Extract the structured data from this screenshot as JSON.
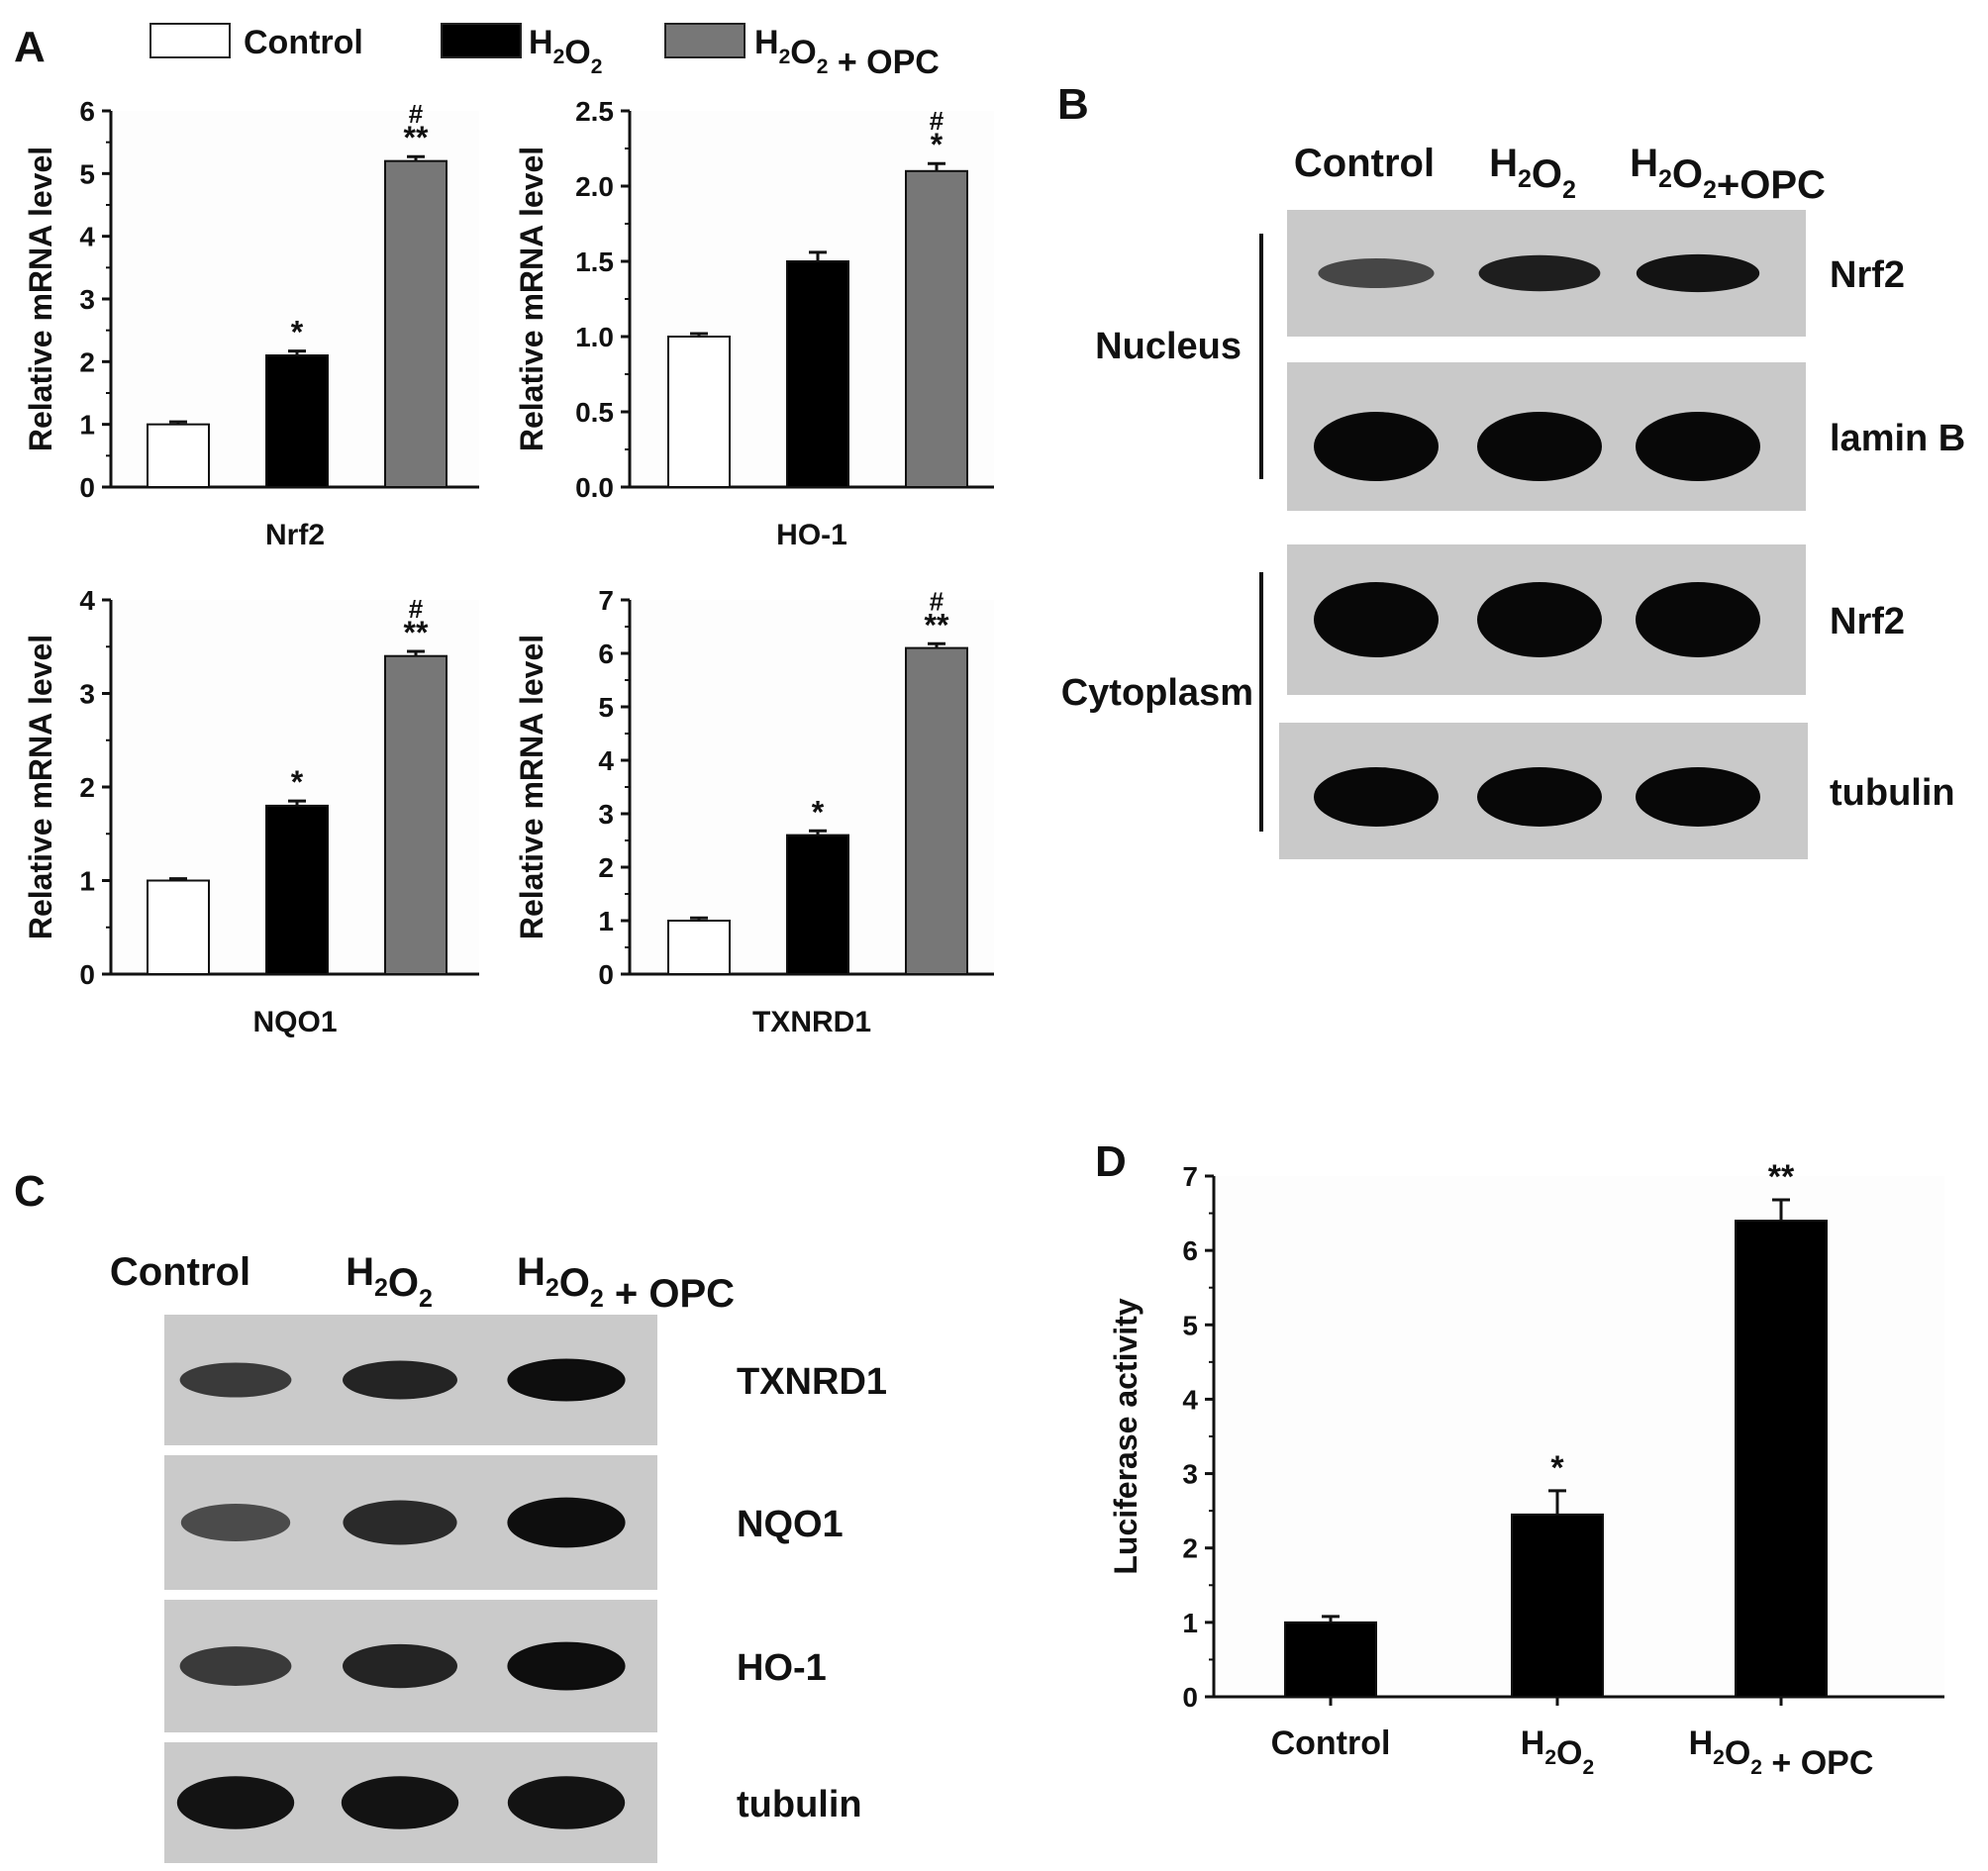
{
  "panel_labels": {
    "a": "A",
    "b": "B",
    "c": "C",
    "d": "D"
  },
  "legend": {
    "items": [
      {
        "label": "Control",
        "color": "#ffffff"
      },
      {
        "label": "H",
        "sub": "2",
        "label2": "O",
        "sub2": "2",
        "color": "#000000"
      },
      {
        "label": "H",
        "sub": "2",
        "label2": "O",
        "sub2": "2",
        "tail": " + OPC",
        "color": "#777777"
      }
    ]
  },
  "chart_data": [
    {
      "type": "bar",
      "panel": "A",
      "xlabel": "Nrf2",
      "ylabel": "Relative mRNA level",
      "ylim": [
        0,
        6
      ],
      "ticks": [
        "0",
        "1",
        "2",
        "3",
        "4",
        "5",
        "6"
      ],
      "values": [
        1.0,
        2.1,
        5.2
      ],
      "errors": [
        0.04,
        0.07,
        0.07
      ],
      "annotations": [
        [
          "",
          ""
        ],
        [
          "",
          "*"
        ],
        [
          "#",
          "**"
        ]
      ]
    },
    {
      "type": "bar",
      "panel": "A",
      "xlabel": "HO-1",
      "ylabel": "Relative mRNA level",
      "ylim": [
        0,
        2.5
      ],
      "ticks": [
        "0.0",
        "0.5",
        "1.0",
        "1.5",
        "2.0",
        "2.5"
      ],
      "values": [
        1.0,
        1.5,
        2.1
      ],
      "errors": [
        0.02,
        0.06,
        0.05
      ],
      "annotations": [
        [
          "",
          ""
        ],
        [
          "",
          ""
        ],
        [
          "#",
          "*"
        ]
      ]
    },
    {
      "type": "bar",
      "panel": "A",
      "xlabel": "NQO1",
      "ylabel": "Relative mRNA level",
      "ylim": [
        0,
        4
      ],
      "ticks": [
        "0",
        "1",
        "2",
        "3",
        "4"
      ],
      "values": [
        1.0,
        1.8,
        3.4
      ],
      "errors": [
        0.02,
        0.05,
        0.05
      ],
      "annotations": [
        [
          "",
          ""
        ],
        [
          "",
          "*"
        ],
        [
          "#",
          "**"
        ]
      ]
    },
    {
      "type": "bar",
      "panel": "A",
      "xlabel": "TXNRD1",
      "ylabel": "Relative mRNA level",
      "ylim": [
        0,
        7
      ],
      "ticks": [
        "0",
        "1",
        "2",
        "3",
        "4",
        "5",
        "6",
        "7"
      ],
      "values": [
        1.0,
        2.6,
        6.1
      ],
      "errors": [
        0.05,
        0.08,
        0.08
      ],
      "annotations": [
        [
          "",
          ""
        ],
        [
          "",
          "*"
        ],
        [
          "#",
          "**"
        ]
      ]
    },
    {
      "type": "bar",
      "panel": "D",
      "xlabel": "",
      "ylabel": "Luciferase activity",
      "ylim": [
        0,
        7
      ],
      "ticks": [
        "0",
        "1",
        "2",
        "3",
        "4",
        "5",
        "6",
        "7"
      ],
      "categories": [
        {
          "label": "Control"
        },
        {
          "label": "H",
          "sub": "2",
          "label2": "O",
          "sub2": "2"
        },
        {
          "label": "H",
          "sub": "2",
          "label2": "O",
          "sub2": "2",
          "tail": " + OPC"
        }
      ],
      "values": [
        1.0,
        2.45,
        6.4
      ],
      "errors": [
        0.08,
        0.32,
        0.28
      ],
      "annotations": [
        "",
        "*",
        "**"
      ]
    }
  ],
  "blot_b": {
    "lanes": [
      {
        "label": "Control"
      },
      {
        "label": "H",
        "sub": "2",
        "label2": "O",
        "sub2": "2"
      },
      {
        "label": "H",
        "sub": "2",
        "label2": "O",
        "sub2": "2",
        "tail": "+OPC"
      }
    ],
    "groups": [
      {
        "label": "Nucleus"
      },
      {
        "label": "Cytoplasm"
      }
    ],
    "rows": [
      {
        "label": "Nrf2",
        "intensity": [
          0.45,
          0.8,
          0.9
        ]
      },
      {
        "label": "lamin B",
        "intensity": [
          1.0,
          1.0,
          1.0
        ]
      },
      {
        "label": "Nrf2",
        "intensity": [
          1.0,
          1.0,
          1.0
        ]
      },
      {
        "label": "tubulin",
        "intensity": [
          1.0,
          1.0,
          1.0
        ]
      }
    ]
  },
  "blot_c": {
    "lanes": [
      {
        "label": "Control"
      },
      {
        "label": "H",
        "sub": "2",
        "label2": "O",
        "sub2": "2"
      },
      {
        "label": "H",
        "sub": "2",
        "label2": "O",
        "sub2": "2",
        "tail": " + OPC"
      }
    ],
    "rows": [
      {
        "label": "TXNRD1",
        "intensity": [
          0.55,
          0.75,
          0.95
        ]
      },
      {
        "label": "NQO1",
        "intensity": [
          0.4,
          0.7,
          0.95
        ]
      },
      {
        "label": "HO-1",
        "intensity": [
          0.55,
          0.75,
          0.95
        ]
      },
      {
        "label": "tubulin",
        "intensity": [
          0.9,
          0.9,
          0.9
        ]
      }
    ]
  }
}
